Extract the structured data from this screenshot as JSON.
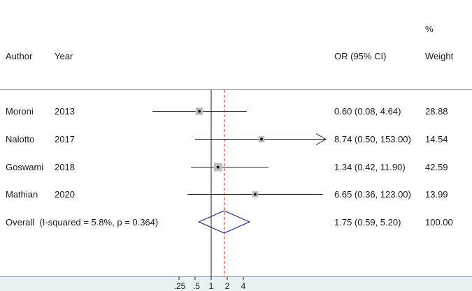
{
  "chart_data": {
    "type": "forest",
    "x_scale": "log",
    "xlim": [
      0.25,
      153
    ],
    "xticks": [
      ".25",
      ".5",
      "1",
      "2",
      "4"
    ],
    "null_line": 1,
    "overall_line": 1.75,
    "header": {
      "author": "Author",
      "year": "Year",
      "or": "OR (95% CI)",
      "pct": "%",
      "weight": "Weight"
    },
    "studies": [
      {
        "author": "Moroni",
        "year": "2013",
        "or": 0.6,
        "lo": 0.08,
        "hi": 4.64,
        "ci_text": "0.60 (0.08, 4.64)",
        "weight": "28.88"
      },
      {
        "author": "Nalotto",
        "year": "2017",
        "or": 8.74,
        "lo": 0.5,
        "hi": 153.0,
        "ci_text": "8.74 (0.50, 153.00)",
        "weight": "14.54"
      },
      {
        "author": "Goswami",
        "year": "2018",
        "or": 1.34,
        "lo": 0.42,
        "hi": 11.9,
        "ci_text": "1.34 (0.42, 11.90)",
        "weight": "42.59"
      },
      {
        "author": "Mathian",
        "year": "2020",
        "or": 6.65,
        "lo": 0.36,
        "hi": 123.0,
        "ci_text": "6.65 (0.36, 123.00)",
        "weight": "13.99"
      }
    ],
    "overall": {
      "label": "Overall  (I-squared = 5.8%, p = 0.364)",
      "or": 1.75,
      "lo": 0.59,
      "hi": 5.2,
      "ci_text": "1.75 (0.59, 5.20)",
      "weight": "100.00"
    },
    "colors": {
      "line": "#1a1a1a",
      "box": "#bdbdbd",
      "diamond": "#1f2a7a",
      "dashed": "#c0392b",
      "band": "#eaf2f3"
    }
  }
}
